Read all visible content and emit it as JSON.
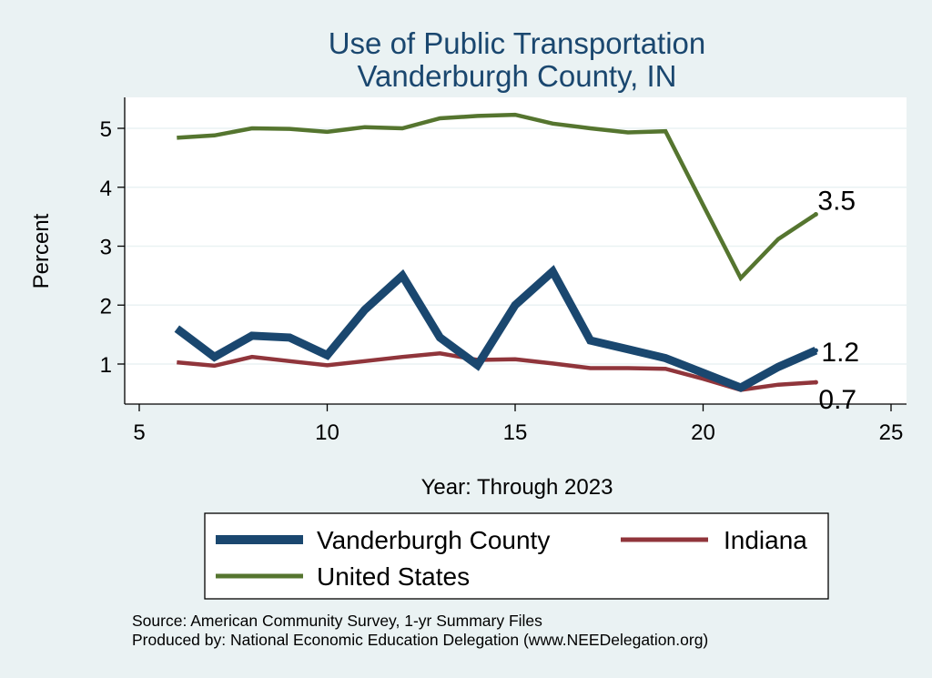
{
  "chart_data": {
    "type": "line",
    "title": "Use of Public Transportation",
    "subtitle": "Vanderburgh County, IN",
    "xlabel": "Year: Through 2023",
    "ylabel": "Percent",
    "xlim": [
      5,
      25
    ],
    "ylim": [
      0.3,
      5.5
    ],
    "xticks": [
      5,
      10,
      15,
      20,
      25
    ],
    "yticks": [
      1,
      2,
      3,
      4,
      5
    ],
    "grid": true,
    "legend_position": "bottom",
    "series": [
      {
        "name": "Vanderburgh County",
        "color": "#1a476f",
        "x": [
          6,
          7,
          8,
          9,
          10,
          11,
          12,
          13,
          14,
          15,
          16,
          17,
          18,
          19,
          20,
          21,
          22,
          23
        ],
        "values": [
          1.6,
          1.12,
          1.48,
          1.45,
          1.15,
          1.92,
          2.5,
          1.45,
          0.98,
          2.0,
          2.57,
          1.4,
          1.25,
          1.1,
          0.85,
          0.6,
          0.95,
          1.23
        ],
        "end_label": "1.2"
      },
      {
        "name": "Indiana",
        "color": "#90353b",
        "x": [
          6,
          7,
          8,
          9,
          10,
          11,
          12,
          13,
          14,
          15,
          16,
          17,
          18,
          19,
          20,
          21,
          22,
          23
        ],
        "values": [
          1.03,
          0.97,
          1.12,
          1.05,
          0.98,
          1.05,
          1.12,
          1.18,
          1.07,
          1.08,
          1.01,
          0.93,
          0.93,
          0.92,
          0.75,
          0.56,
          0.65,
          0.69
        ],
        "end_label": "0.7"
      },
      {
        "name": "United States",
        "color": "#55752f",
        "x": [
          6,
          7,
          8,
          9,
          10,
          11,
          12,
          13,
          14,
          15,
          16,
          17,
          18,
          19,
          20,
          21,
          22,
          23
        ],
        "values": [
          4.84,
          4.88,
          5.0,
          4.99,
          4.94,
          5.02,
          5.0,
          5.17,
          5.21,
          5.23,
          5.08,
          5.0,
          4.93,
          4.95,
          3.7,
          2.46,
          3.12,
          3.54
        ],
        "end_label": "3.5"
      }
    ],
    "legend_entries": [
      "Vanderburgh County",
      "Indiana",
      "United States"
    ],
    "notes": [
      "Source: American Community Survey, 1-yr Summary Files",
      "Produced by: National Economic Education Delegation (www.NEEDelegation.org)"
    ]
  },
  "colors": {
    "background": "#eaf2f3",
    "plot_background": "#ffffff",
    "gridline": "#eaf2f3",
    "title": "#1a476f"
  }
}
